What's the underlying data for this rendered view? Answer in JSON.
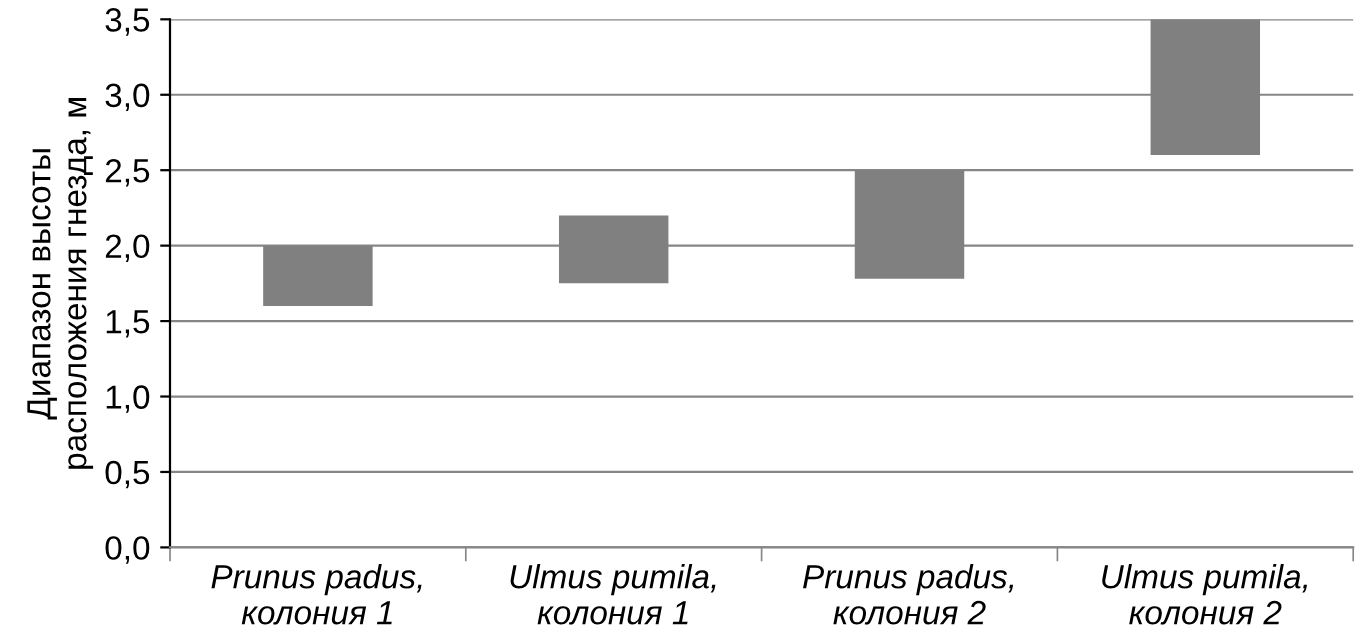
{
  "chart_data": {
    "type": "bar",
    "ylabel": "Диапазон высоты\nрасположения гнезда, м",
    "categories": [
      "Prunus padus,\nколония 1",
      "Ulmus pumila,\nколония 1",
      "Prunus padus,\nколония 2",
      "Ulmus pumila,\nколония 2"
    ],
    "base": [
      1.6,
      1.75,
      1.78,
      2.6
    ],
    "values": [
      0.4,
      0.45,
      0.72,
      0.9
    ],
    "color": "#808080",
    "ylim": [
      0,
      3.5
    ],
    "yticks": [
      {
        "value": 0,
        "label": "0,0"
      },
      {
        "value": 0.5,
        "label": "0,5"
      },
      {
        "value": 1,
        "label": "1,0"
      },
      {
        "value": 1.5,
        "label": "1,5"
      },
      {
        "value": 2,
        "label": "2,0"
      },
      {
        "value": 2.5,
        "label": "2,5"
      },
      {
        "value": 3,
        "label": "3,0"
      },
      {
        "value": 3.5,
        "label": "3,5"
      }
    ],
    "grid": "y"
  }
}
